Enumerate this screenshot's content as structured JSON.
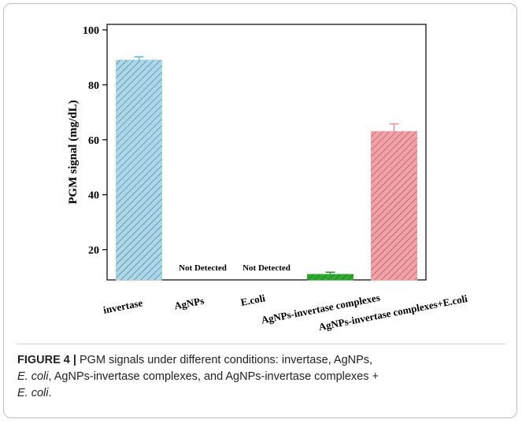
{
  "chart_data": {
    "type": "bar",
    "ylabel": "PGM signal (mg/dL)",
    "ylim": [
      9,
      102
    ],
    "yticks": [
      20,
      40,
      60,
      80,
      100
    ],
    "categories": [
      "invertase",
      "AgNPs",
      "E.coli",
      "AgNPs-invertase complexes",
      "AgNPs-invertase complexes+E.coli"
    ],
    "values": [
      89,
      0,
      0,
      11,
      63
    ],
    "errors": [
      1.2,
      0,
      0,
      0.8,
      2.8
    ],
    "colors": [
      "#a9d8ea",
      "#ffffff",
      "#ffffff",
      "#2eaa2e",
      "#f4a0a6"
    ],
    "error_colors": [
      "#5ab6d9",
      "#000000",
      "#000000",
      "#2a8f2a",
      "#ee8a90"
    ],
    "annotations": [
      "",
      "Not Detected",
      "Not Detected",
      "",
      ""
    ],
    "grid": false,
    "hatch": "diagonal"
  },
  "caption": {
    "label": "FIGURE 4 |",
    "text1": " PGM signals under different conditions: invertase, AgNPs,",
    "em1": "E. coli",
    "text2": ", AgNPs-invertase complexes, and AgNPs-invertase complexes +",
    "em2": "E. coli",
    "text3": "."
  }
}
